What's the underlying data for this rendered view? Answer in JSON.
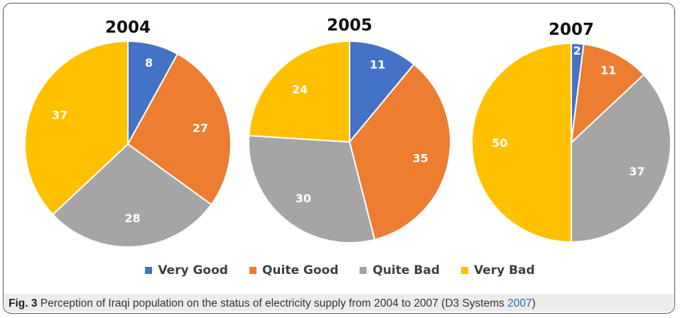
{
  "chart_data": [
    {
      "type": "pie",
      "title": "2004",
      "categories": [
        "Very Good",
        "Quite Good",
        "Quite Bad",
        "Very Bad"
      ],
      "values": [
        8,
        27,
        28,
        37
      ]
    },
    {
      "type": "pie",
      "title": "2005",
      "categories": [
        "Very Good",
        "Quite Good",
        "Quite Bad",
        "Very Bad"
      ],
      "values": [
        11,
        35,
        30,
        24
      ]
    },
    {
      "type": "pie",
      "title": "2007",
      "categories": [
        "Very Good",
        "Quite Good",
        "Quite Bad",
        "Very Bad"
      ],
      "values": [
        2,
        11,
        37,
        50
      ]
    }
  ],
  "legend": [
    {
      "label": "Very Good",
      "color": "#4472c4"
    },
    {
      "label": "Quite Good",
      "color": "#ed7d31"
    },
    {
      "label": "Quite Bad",
      "color": "#a5a5a5"
    },
    {
      "label": "Very Bad",
      "color": "#ffc000"
    }
  ],
  "caption": {
    "label": "Fig. 3",
    "text": " Perception of Iraqi population on the status of electricity supply from 2004 to 2007 (D3 Systems ",
    "ref": "2007",
    "end": ")"
  }
}
